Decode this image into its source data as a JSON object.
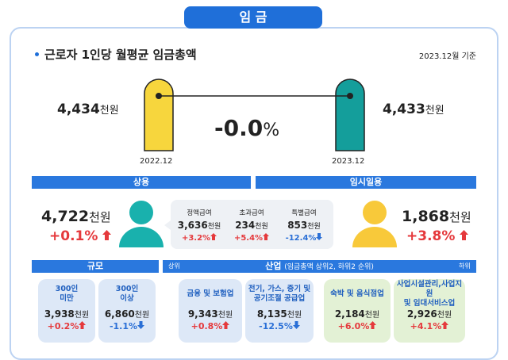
{
  "header": {
    "title": "임 금"
  },
  "subtitle": "근로자 1인당 월평균 임금총액",
  "basis": "2023.12월 기준",
  "comparison": {
    "left": {
      "value": "4,434",
      "unit": "천원",
      "date": "2022.12"
    },
    "right": {
      "value": "4,433",
      "unit": "천원",
      "date": "2023.12"
    },
    "change": {
      "value": "-0.0",
      "unit": "%"
    }
  },
  "sections": {
    "regular": "상용",
    "temporary": "임시일용",
    "size": "규모",
    "industry": "산업",
    "industry_note": "(임금총액 상위2, 하위2 순위)",
    "top": "상위",
    "bottom": "하위"
  },
  "regular": {
    "value": "4,722",
    "unit": "천원",
    "change": "+0.1%",
    "items": [
      {
        "label": "정액급여",
        "value": "3,636",
        "unit": "천원",
        "change": "+3.2%"
      },
      {
        "label": "초과급여",
        "value": "234",
        "unit": "천원",
        "change": "+5.4%"
      },
      {
        "label": "특별급여",
        "value": "853",
        "unit": "천원",
        "change": "-12.4%"
      }
    ]
  },
  "temporary": {
    "value": "1,868",
    "unit": "천원",
    "change": "+3.8%"
  },
  "cards": [
    {
      "name": [
        "300인",
        "미만"
      ],
      "value": "3,938",
      "unit": "천원",
      "change": "+0.2%"
    },
    {
      "name": [
        "300인",
        "이상"
      ],
      "value": "6,860",
      "unit": "천원",
      "change": "-1.1%"
    },
    {
      "name": [
        "금융 및 보험업"
      ],
      "value": "9,343",
      "unit": "천원",
      "change": "+0.8%"
    },
    {
      "name": [
        "전기, 가스, 증기 및",
        "공기조절 공급업"
      ],
      "value": "8,135",
      "unit": "천원",
      "change": "-12.5%"
    },
    {
      "name": [
        "숙박 및 음식점업"
      ],
      "value": "2,184",
      "unit": "천원",
      "change": "+6.0%"
    },
    {
      "name": [
        "사업시설관리,사업지원",
        "및 임대서비스업"
      ],
      "value": "2,926",
      "unit": "천원",
      "change": "+4.1%"
    }
  ]
}
